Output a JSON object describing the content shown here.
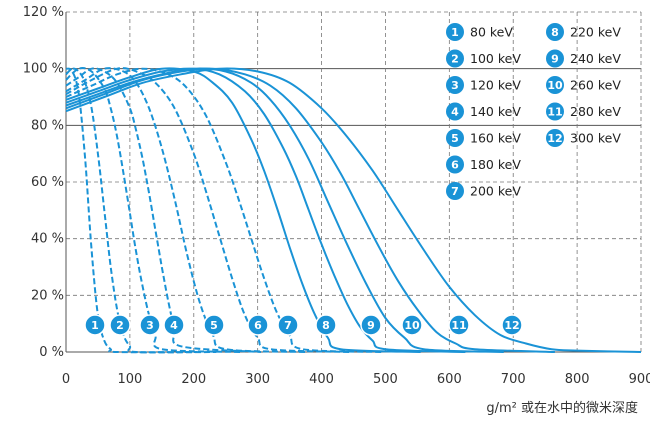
{
  "chart_data": {
    "type": "line",
    "xlabel": "g/m² 或在水中的微米深度",
    "ylabel": "",
    "xlim": [
      0,
      900
    ],
    "ylim": [
      0,
      120
    ],
    "x_ticks": [
      "0",
      "100",
      "200",
      "300",
      "400",
      "500",
      "600",
      "700",
      "800",
      "900"
    ],
    "y_ticks": [
      "0 %",
      "20 %",
      "40 %",
      "60 %",
      "80 %",
      "100 %",
      "120 %"
    ],
    "grid": "dashed",
    "legend_position": "top-right",
    "color": "#1a93d6",
    "series": [
      {
        "id": "1",
        "name": "80 keV",
        "style": "dashed",
        "x": [
          0,
          10,
          20,
          30,
          40,
          50,
          60,
          70,
          80
        ],
        "y": [
          100,
          99,
          91,
          68,
          36,
          13,
          4,
          1,
          0
        ]
      },
      {
        "id": "2",
        "name": "100 keV",
        "style": "dashed",
        "x": [
          0,
          10,
          20,
          30,
          40,
          50,
          60,
          70,
          80,
          90,
          100,
          110
        ],
        "y": [
          98,
          100,
          99,
          95,
          86,
          70,
          50,
          30,
          15,
          6,
          2,
          0
        ]
      },
      {
        "id": "3",
        "name": "120 keV",
        "style": "dashed",
        "x": [
          0,
          20,
          40,
          60,
          70,
          80,
          90,
          100,
          110,
          120,
          130,
          140,
          150
        ],
        "y": [
          96,
          100,
          99,
          93,
          86,
          76,
          63,
          49,
          35,
          23,
          13,
          6,
          1
        ]
      },
      {
        "id": "4",
        "name": "140 keV",
        "style": "dashed",
        "x": [
          0,
          20,
          40,
          60,
          80,
          100,
          110,
          120,
          130,
          140,
          150,
          160,
          170,
          180
        ],
        "y": [
          94,
          97,
          100,
          99,
          95,
          86,
          78,
          68,
          56,
          43,
          30,
          18,
          8,
          2
        ]
      },
      {
        "id": "5",
        "name": "160 keV",
        "style": "dashed",
        "x": [
          0,
          30,
          60,
          90,
          110,
          130,
          150,
          170,
          190,
          210,
          230,
          250
        ],
        "y": [
          92,
          96,
          100,
          99,
          95,
          86,
          72,
          54,
          34,
          17,
          6,
          1
        ]
      },
      {
        "id": "6",
        "name": "180 keV",
        "style": "dashed",
        "x": [
          0,
          40,
          80,
          110,
          140,
          170,
          200,
          220,
          240,
          260,
          280,
          300,
          320
        ],
        "y": [
          91,
          96,
          100,
          99,
          95,
          86,
          70,
          56,
          41,
          26,
          13,
          5,
          1
        ]
      },
      {
        "id": "7",
        "name": "200 keV",
        "style": "dashed",
        "x": [
          0,
          40,
          80,
          120,
          160,
          190,
          220,
          250,
          270,
          290,
          310,
          330,
          350,
          370
        ],
        "y": [
          90,
          94,
          98,
          100,
          98,
          93,
          83,
          67,
          54,
          40,
          26,
          14,
          6,
          1
        ]
      },
      {
        "id": "8",
        "name": "220 keV",
        "style": "solid",
        "x": [
          0,
          50,
          100,
          150,
          200,
          230,
          260,
          290,
          310,
          330,
          350,
          370,
          390,
          410,
          430
        ],
        "y": [
          89,
          93,
          97,
          100,
          99,
          95,
          88,
          75,
          64,
          51,
          37,
          24,
          13,
          5,
          1
        ]
      },
      {
        "id": "9",
        "name": "240 keV",
        "style": "solid",
        "x": [
          0,
          50,
          100,
          150,
          200,
          240,
          280,
          310,
          340,
          360,
          380,
          400,
          420,
          440,
          460,
          480,
          500
        ],
        "y": [
          88,
          92,
          96,
          99,
          100,
          98,
          92,
          84,
          72,
          62,
          50,
          38,
          27,
          17,
          9,
          4,
          1
        ]
      },
      {
        "id": "10",
        "name": "260 keV",
        "style": "solid",
        "x": [
          0,
          50,
          100,
          150,
          200,
          250,
          290,
          320,
          350,
          380,
          410,
          440,
          470,
          500,
          530,
          560
        ],
        "y": [
          87,
          91,
          95,
          98,
          100,
          99,
          95,
          89,
          80,
          68,
          53,
          38,
          24,
          12,
          5,
          1
        ]
      },
      {
        "id": "11",
        "name": "280 keV",
        "style": "solid",
        "x": [
          0,
          60,
          120,
          180,
          230,
          280,
          320,
          360,
          400,
          430,
          460,
          490,
          520,
          550,
          580,
          610,
          640
        ],
        "y": [
          86,
          91,
          96,
          99,
          100,
          98,
          94,
          86,
          74,
          63,
          50,
          37,
          25,
          15,
          7,
          3,
          1
        ]
      },
      {
        "id": "12",
        "name": "300 keV",
        "style": "solid",
        "x": [
          0,
          60,
          120,
          180,
          240,
          300,
          350,
          400,
          440,
          480,
          520,
          560,
          600,
          640,
          680,
          720,
          760,
          800,
          900
        ],
        "y": [
          85,
          90,
          95,
          98,
          100,
          99,
          95,
          86,
          76,
          64,
          50,
          36,
          23,
          13,
          6,
          3,
          1,
          0.5,
          0
        ]
      }
    ]
  }
}
